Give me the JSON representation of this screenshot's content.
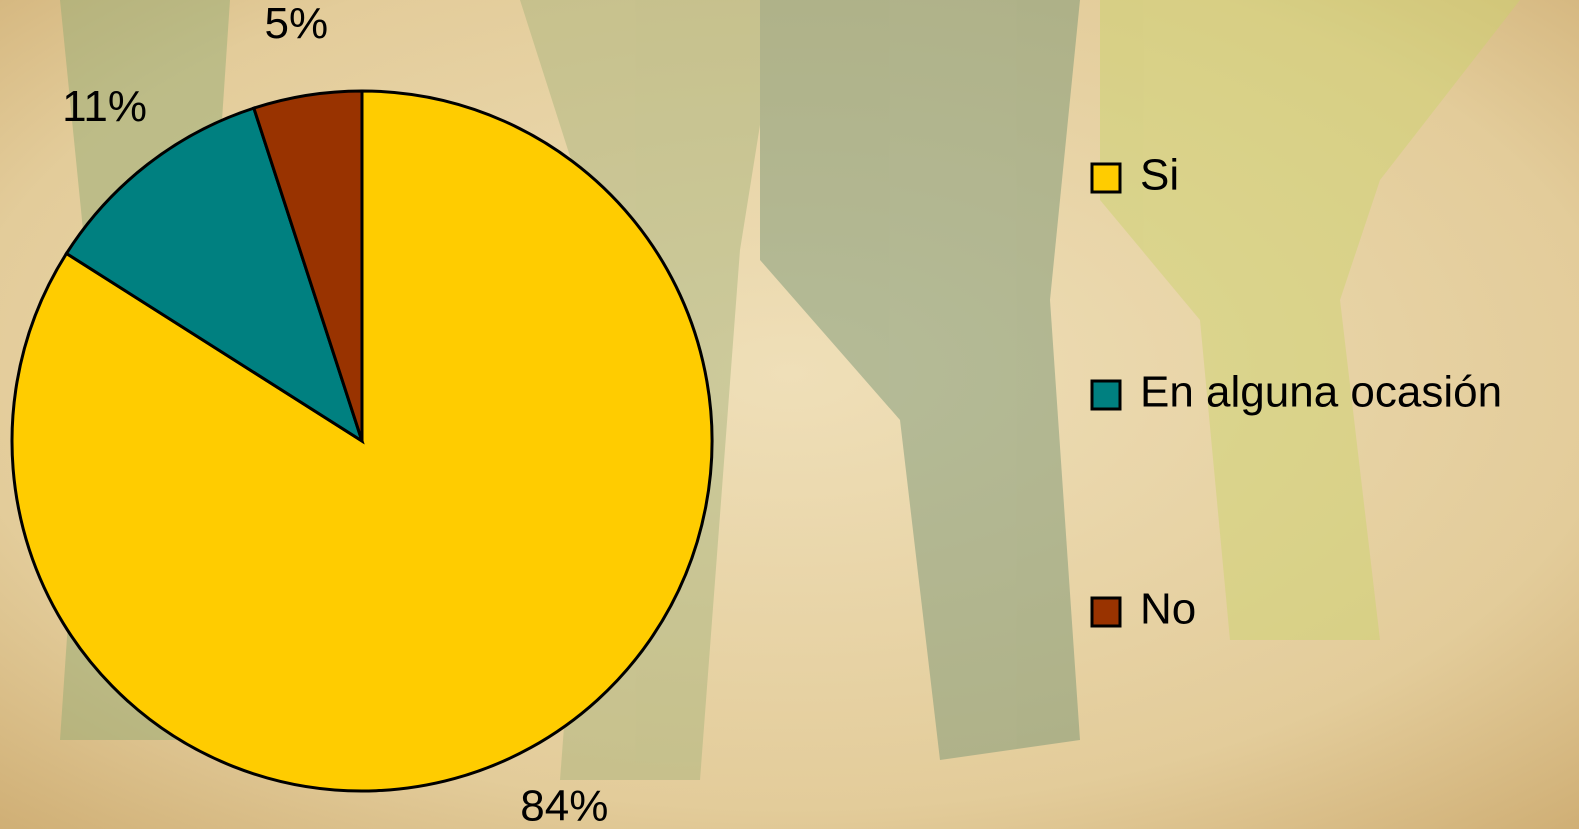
{
  "chart_data": {
    "type": "pie",
    "categories": [
      "Si",
      "En alguna ocasión",
      "No"
    ],
    "values": [
      84,
      11,
      5
    ],
    "value_labels": [
      "84%",
      "11%",
      "5%"
    ],
    "colors": [
      "#ffcc00",
      "#008080",
      "#993300"
    ],
    "legend": "right"
  }
}
